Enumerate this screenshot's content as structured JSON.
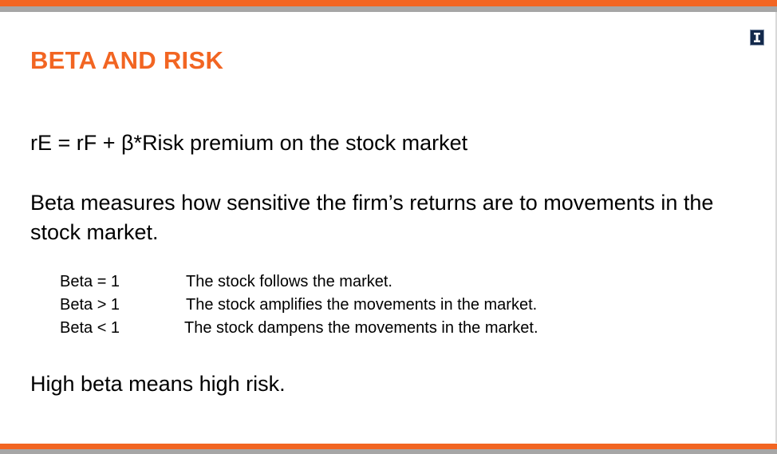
{
  "slide": {
    "title": "BETA AND RISK",
    "formula": "rE = rF + β*Risk premium on the stock market",
    "description": "Beta measures how sensitive the firm’s returns are to movements in the stock market.",
    "beta_table": [
      {
        "label": "Beta = 1",
        "text": "The stock follows the market."
      },
      {
        "label": "Beta > 1",
        "text": "The stock amplifies the movements in the market."
      },
      {
        "label": "Beta < 1",
        "text": "The stock dampens the movements in the market."
      }
    ],
    "conclusion": "High beta means high risk."
  },
  "logo": {
    "icon": "university-block-i-icon",
    "letter": "I"
  },
  "colors": {
    "accent_orange": "#f26522",
    "band_gray": "#a6a6a6",
    "logo_navy": "#13294b"
  }
}
